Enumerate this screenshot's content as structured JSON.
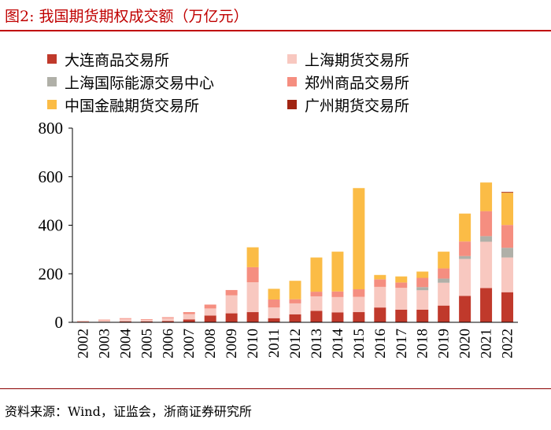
{
  "title": "图2:  我国期货期权成交额（万亿元）",
  "source": "资料来源：Wind，证监会，浙商证券研究所",
  "colors": {
    "大连商品交易所": "#c0392b",
    "上海期货交易所": "#f8c8c0",
    "上海国际能源交易中心": "#b0b0a8",
    "郑州商品交易所": "#f58e80",
    "中国金融期货交易所": "#fbbc46",
    "广州期货交易所": "#a12512"
  },
  "chart_data": {
    "type": "bar",
    "stacked": true,
    "title": "我国期货期权成交额（万亿元）",
    "xlabel": "",
    "ylabel": "",
    "ylim": [
      0,
      800
    ],
    "yticks": [
      "0",
      "200",
      "400",
      "600",
      "800"
    ],
    "categories": [
      "2002",
      "2003",
      "2004",
      "2005",
      "2006",
      "2007",
      "2008",
      "2009",
      "2010",
      "2011",
      "2012",
      "2013",
      "2014",
      "2015",
      "2016",
      "2017",
      "2018",
      "2019",
      "2020",
      "2021",
      "2022"
    ],
    "series": [
      {
        "name": "大连商品交易所",
        "values": [
          1,
          2,
          4,
          4,
          5,
          12,
          28,
          37,
          42,
          17,
          33,
          47,
          41,
          42,
          61,
          52,
          52,
          69,
          109,
          141,
          124
        ]
      },
      {
        "name": "上海期货交易所",
        "values": [
          3,
          7,
          10,
          7,
          12,
          22,
          29,
          74,
          123,
          44,
          45,
          60,
          63,
          63,
          85,
          90,
          80,
          94,
          152,
          191,
          143
        ]
      },
      {
        "name": "上海国际能源交易中心",
        "values": [
          0,
          0,
          0,
          0,
          0,
          0,
          0,
          0,
          0,
          0,
          0,
          0,
          0,
          0,
          0,
          0,
          13,
          17,
          12,
          23,
          40
        ]
      },
      {
        "name": "郑州商品交易所",
        "values": [
          1,
          2,
          3,
          2,
          4,
          8,
          16,
          22,
          62,
          33,
          17,
          19,
          23,
          31,
          31,
          22,
          38,
          42,
          60,
          103,
          94
        ]
      },
      {
        "name": "中国金融期货交易所",
        "values": [
          0,
          0,
          0,
          0,
          0,
          0,
          0,
          0,
          82,
          44,
          76,
          141,
          164,
          417,
          18,
          25,
          26,
          69,
          115,
          118,
          133
        ]
      },
      {
        "name": "广州期货交易所",
        "values": [
          0,
          0,
          0,
          0,
          0,
          0,
          0,
          0,
          0,
          0,
          0,
          0,
          0,
          0,
          0,
          0,
          0,
          0,
          0,
          0,
          3
        ]
      }
    ],
    "legend_position": "top"
  }
}
